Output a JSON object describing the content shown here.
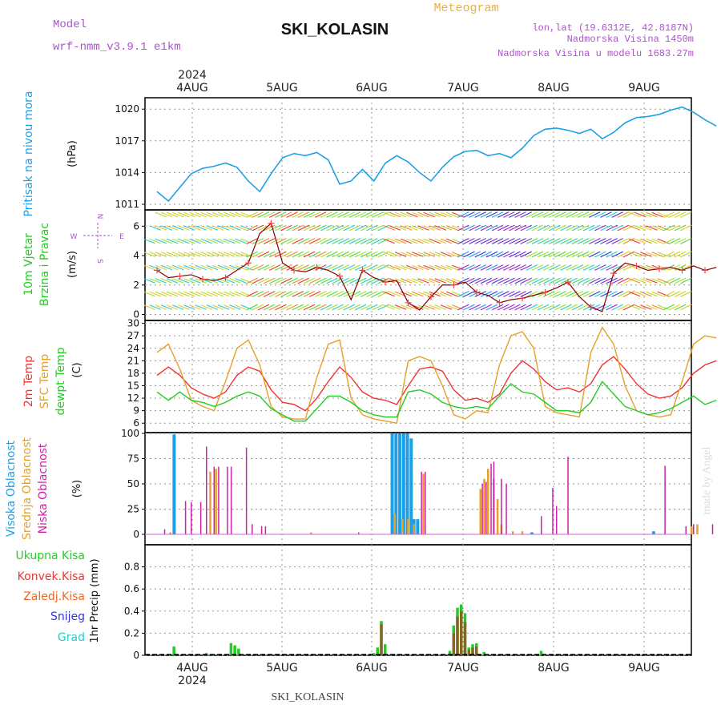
{
  "header": {
    "model_label": "Model",
    "model_name": "wrf-nmm_v3.9.1 e1km",
    "title": "SKI_KOLASIN",
    "product": "Meteogram",
    "lonlat": "lon,lat (19.6312E, 42.8187N)",
    "altitude": "Nadmorska Visina 1450m",
    "model_altitude": "Nadmorska Visina u modelu 1683.27m",
    "footer_station": "SKI_KOLASIN",
    "credit": "made by Angel"
  },
  "time_axis": {
    "year": "2024",
    "days": [
      "4AUG",
      "5AUG",
      "6AUG",
      "7AUG",
      "8AUG",
      "9AUG"
    ]
  },
  "colors": {
    "pressure": "#1ea0e6",
    "temp2m": "#ee3333",
    "sfc": "#e6a028",
    "dewpt": "#22cc22",
    "high": "#1ea0e6",
    "mid": "#e6a028",
    "low": "#cc22aa",
    "total_precip": "#22cc22",
    "conv_precip": "#ee3333",
    "frz_precip": "#ee6622",
    "snow": "#3333dd",
    "hail": "#22cccc"
  },
  "chart_data": [
    {
      "type": "line",
      "panel": "pressure",
      "title": "",
      "ylabel": "Pritisak na nivou mora",
      "unit": "(hPa)",
      "ylim": [
        1011,
        1021
      ],
      "yticks": [
        "1011",
        "1014",
        "1017",
        "1020"
      ],
      "x_hours": [
        0,
        3,
        6,
        9,
        12,
        15,
        18,
        21,
        24,
        27,
        30,
        33,
        36,
        39,
        42,
        45,
        48,
        51,
        54,
        57,
        60,
        63,
        66,
        69,
        72,
        75,
        78,
        81,
        84,
        87,
        90,
        93,
        96,
        99,
        102,
        105,
        108,
        111,
        114,
        117,
        120,
        123,
        126,
        129,
        132,
        135,
        138,
        141,
        144,
        147
      ],
      "series": [
        {
          "values": [
            1012.2,
            1011.3,
            1012.6,
            1013.9,
            1014.4,
            1014.6,
            1014.9,
            1014.5,
            1013.2,
            1012.2,
            1013.9,
            1015.4,
            1015.8,
            1015.6,
            1015.9,
            1015.2,
            1012.9,
            1013.2,
            1014.3,
            1013.2,
            1014.9,
            1015.6,
            1015.0,
            1014.0,
            1013.2,
            1014.5,
            1015.5,
            1016.0,
            1016.1,
            1015.6,
            1015.8,
            1015.4,
            1016.3,
            1017.5,
            1018.1,
            1018.2,
            1018.0,
            1017.7,
            1018.1,
            1017.2,
            1017.8,
            1018.7,
            1019.2,
            1019.3,
            1019.5,
            1019.9,
            1020.2,
            1019.7,
            1019.0,
            1018.4
          ]
        }
      ]
    },
    {
      "type": "line",
      "panel": "wind",
      "title": "",
      "ylabel": "10m Vjetar Brzina i Pravac",
      "unit": "(m/s)",
      "compass": [
        "N",
        "W",
        "E",
        "S"
      ],
      "ylim": [
        -0.3,
        7
      ],
      "yticks": [
        "0",
        "2",
        "4",
        "6"
      ],
      "x_hours": [
        0,
        3,
        6,
        9,
        12,
        15,
        18,
        21,
        24,
        27,
        30,
        33,
        36,
        39,
        42,
        45,
        48,
        51,
        54,
        57,
        60,
        63,
        66,
        69,
        72,
        75,
        78,
        81,
        84,
        87,
        90,
        93,
        96,
        99,
        102,
        105,
        108,
        111,
        114,
        117,
        120,
        123,
        126,
        129,
        132,
        135,
        138,
        141,
        144,
        147
      ],
      "series": [
        {
          "values": [
            3.0,
            2.5,
            2.6,
            2.7,
            2.4,
            2.3,
            2.5,
            3.0,
            3.5,
            5.5,
            6.2,
            3.5,
            3.0,
            2.9,
            3.2,
            3.0,
            2.6,
            1.0,
            3.0,
            2.5,
            2.2,
            2.3,
            0.8,
            0.3,
            1.2,
            2.0,
            2.0,
            2.2,
            1.5,
            1.3,
            0.8,
            1.0,
            1.1,
            1.3,
            1.5,
            1.8,
            2.2,
            1.2,
            0.5,
            0.2,
            2.8,
            3.5,
            3.3,
            3.0,
            3.1,
            3.2,
            3.0,
            3.3,
            3.0,
            3.2
          ]
        }
      ]
    },
    {
      "type": "line",
      "panel": "temperature",
      "title": "",
      "ylabels": [
        "2m Temp",
        "SFC Temp",
        "dewpt Temp"
      ],
      "unit": "(C)",
      "ylim": [
        4.5,
        30.5
      ],
      "yticks": [
        "6",
        "9",
        "12",
        "15",
        "18",
        "21",
        "24",
        "27",
        "30"
      ],
      "x_hours": [
        0,
        3,
        6,
        9,
        12,
        15,
        18,
        21,
        24,
        27,
        30,
        33,
        36,
        39,
        42,
        45,
        48,
        51,
        54,
        57,
        60,
        63,
        66,
        69,
        72,
        75,
        78,
        81,
        84,
        87,
        90,
        93,
        96,
        99,
        102,
        105,
        108,
        111,
        114,
        117,
        120,
        123,
        126,
        129,
        132,
        135,
        138,
        141,
        144,
        147
      ],
      "series": [
        {
          "name": "2m Temp",
          "values": [
            17.5,
            19.5,
            17.5,
            14.5,
            13.0,
            12.0,
            13.5,
            17.5,
            19.5,
            18.5,
            14.0,
            11.0,
            10.5,
            9.0,
            12.0,
            16.0,
            19.5,
            17.0,
            13.5,
            12.0,
            11.5,
            10.5,
            15.0,
            19.0,
            19.5,
            18.5,
            14.0,
            11.5,
            12.0,
            11.0,
            13.0,
            18.0,
            21.0,
            19.0,
            16.0,
            14.0,
            14.5,
            13.5,
            15.5,
            20.0,
            22.0,
            19.0,
            15.5,
            13.0,
            12.0,
            12.5,
            14.5,
            18.0,
            20.0,
            21.0
          ]
        },
        {
          "name": "SFC Temp",
          "values": [
            23.0,
            25.0,
            19.0,
            11.5,
            10.0,
            9.0,
            16.0,
            24.0,
            26.0,
            20.0,
            10.0,
            7.5,
            7.0,
            7.0,
            17.0,
            25.0,
            26.0,
            12.0,
            8.0,
            7.0,
            6.5,
            6.0,
            21.0,
            22.0,
            21.0,
            15.0,
            8.0,
            7.0,
            9.0,
            8.5,
            20.0,
            27.0,
            28.0,
            24.0,
            10.0,
            8.5,
            8.0,
            7.5,
            23.0,
            29.0,
            25.0,
            15.0,
            9.0,
            8.0,
            7.5,
            8.0,
            16.0,
            25.0,
            27.0,
            26.5
          ]
        },
        {
          "name": "dewpt Temp",
          "values": [
            13.5,
            11.5,
            13.5,
            11.5,
            11.0,
            10.0,
            11.0,
            12.5,
            13.5,
            12.5,
            9.5,
            8.0,
            6.5,
            6.5,
            9.5,
            12.5,
            12.5,
            11.0,
            9.0,
            8.0,
            7.5,
            7.5,
            13.5,
            14.0,
            13.0,
            11.0,
            10.0,
            9.5,
            10.0,
            9.5,
            12.5,
            15.5,
            13.5,
            13.0,
            11.0,
            9.0,
            9.0,
            8.5,
            11.0,
            16.0,
            13.0,
            10.0,
            9.0,
            8.0,
            8.5,
            9.5,
            11.0,
            12.5,
            10.5,
            11.5
          ]
        }
      ]
    },
    {
      "type": "bar",
      "panel": "clouds",
      "title": "",
      "ylabels": [
        "Visoka Oblacnost",
        "Srednja Oblacnost",
        "Niska Oblacnost"
      ],
      "unit": "(%)",
      "ylim": [
        0,
        100
      ],
      "yticks": [
        "0",
        "25",
        "50",
        "75",
        "100"
      ],
      "series": [
        {
          "name": "Visoka Oblacnost",
          "points": [
            [
              4.5,
              99
            ],
            [
              61.8,
              100
            ],
            [
              62.8,
              100
            ],
            [
              63.8,
              100
            ],
            [
              64.8,
              100
            ],
            [
              65.8,
              100
            ],
            [
              66.8,
              95
            ],
            [
              67.5,
              15
            ],
            [
              68.5,
              15
            ],
            [
              98.5,
              2
            ],
            [
              130.5,
              3
            ]
          ]
        },
        {
          "name": "Srednja Oblacnost",
          "points": [
            [
              3.5,
              2
            ],
            [
              14.0,
              62
            ],
            [
              15.5,
              65
            ],
            [
              40.5,
              2
            ],
            [
              62.5,
              20
            ],
            [
              64.5,
              15
            ],
            [
              66.0,
              15
            ],
            [
              67.5,
              10
            ],
            [
              70.0,
              60
            ],
            [
              85.0,
              45
            ],
            [
              86.0,
              55
            ],
            [
              87.0,
              65
            ],
            [
              88.5,
              55
            ],
            [
              89.5,
              35
            ],
            [
              90.5,
              10
            ],
            [
              93.5,
              3
            ],
            [
              96.0,
              3
            ],
            [
              140.5,
              8
            ],
            [
              142.0,
              10
            ]
          ]
        },
        {
          "name": "Niska Oblacnost",
          "points": [
            [
              2.0,
              5
            ],
            [
              7.5,
              33
            ],
            [
              9.0,
              32
            ],
            [
              11.5,
              32
            ],
            [
              13.0,
              87
            ],
            [
              15.0,
              67
            ],
            [
              16.2,
              67
            ],
            [
              18.5,
              67
            ],
            [
              19.5,
              67
            ],
            [
              23.5,
              86
            ],
            [
              25.0,
              10
            ],
            [
              27.5,
              8
            ],
            [
              28.5,
              8
            ],
            [
              53.0,
              2
            ],
            [
              69.5,
              62
            ],
            [
              70.5,
              62
            ],
            [
              85.5,
              50
            ],
            [
              86.5,
              52
            ],
            [
              87.8,
              70
            ],
            [
              88.5,
              72
            ],
            [
              90.5,
              55
            ],
            [
              91.8,
              50
            ],
            [
              101.0,
              18
            ],
            [
              104.0,
              46
            ],
            [
              105.0,
              28
            ],
            [
              108.0,
              77
            ],
            [
              133.5,
              68
            ],
            [
              139.0,
              8
            ],
            [
              141.0,
              10
            ],
            [
              146.0,
              10
            ]
          ]
        }
      ]
    },
    {
      "type": "bar",
      "panel": "precipitation",
      "title": "",
      "ylabels": [
        "Ukupna Kisa",
        "Konvek.Kisa",
        "Zaledj.Kisa",
        "Snijeg",
        "Grad"
      ],
      "unit": "1hr Precip (mm)",
      "ylim": [
        0,
        1.0
      ],
      "yticks": [
        "0",
        "0.2",
        "0.4",
        "0.6",
        "0.8"
      ],
      "series": [
        {
          "name": "Ukupna Kisa",
          "points": [
            [
              4.5,
              0.08
            ],
            [
              11.0,
              0.01
            ],
            [
              13.0,
              0.02
            ],
            [
              14.0,
              0.01
            ],
            [
              19.5,
              0.11
            ],
            [
              20.5,
              0.09
            ],
            [
              21.5,
              0.06
            ],
            [
              51.0,
              0.01
            ],
            [
              57.0,
              0.02
            ],
            [
              58.0,
              0.07
            ],
            [
              59.0,
              0.31
            ],
            [
              60.0,
              0.1
            ],
            [
              63.0,
              0.01
            ],
            [
              68.0,
              0.01
            ],
            [
              77.0,
              0.04
            ],
            [
              78.0,
              0.27
            ],
            [
              79.0,
              0.43
            ],
            [
              80.0,
              0.46
            ],
            [
              81.0,
              0.38
            ],
            [
              82.0,
              0.07
            ],
            [
              83.0,
              0.1
            ],
            [
              84.0,
              0.11
            ],
            [
              86.0,
              0.03
            ],
            [
              101.0,
              0.04
            ]
          ]
        },
        {
          "name": "Konvek.Kisa",
          "points": [
            [
              59.0,
              0.28
            ],
            [
              78.0,
              0.2
            ],
            [
              79.0,
              0.35
            ],
            [
              80.0,
              0.4
            ],
            [
              81.0,
              0.3
            ],
            [
              82.0,
              0.05
            ],
            [
              83.0,
              0.07
            ],
            [
              84.0,
              0.08
            ]
          ]
        }
      ]
    }
  ]
}
